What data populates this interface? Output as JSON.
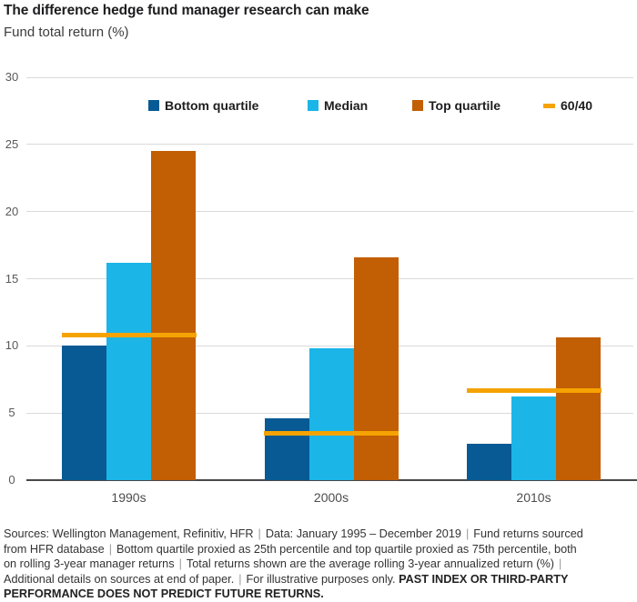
{
  "title": "The difference hedge fund manager research can make",
  "subtitle": "Fund total return (%)",
  "colors": {
    "bottom_quartile": "#075A93",
    "median": "#1BB5E8",
    "top_quartile": "#C25E04",
    "line_6040": "#F5A302",
    "gridline": "#DADADA",
    "axis_line": "#48484A",
    "tick_label": "#595959"
  },
  "chart_data": {
    "type": "bar",
    "title": "The difference hedge fund manager research can make",
    "subtitle": "Fund total return (%)",
    "categories": [
      "1990s",
      "2000s",
      "2010s"
    ],
    "series": [
      {
        "name": "Bottom quartile",
        "color_key": "bottom_quartile",
        "values": [
          10.0,
          4.6,
          2.7
        ]
      },
      {
        "name": "Median",
        "color_key": "median",
        "values": [
          16.2,
          9.8,
          6.2
        ]
      },
      {
        "name": "Top quartile",
        "color_key": "top_quartile",
        "values": [
          24.5,
          16.6,
          10.6
        ]
      }
    ],
    "overlay_line": {
      "name": "60/40",
      "color_key": "line_6040",
      "values": [
        10.8,
        3.5,
        6.7
      ]
    },
    "xlabel": "",
    "ylabel": "Fund total return (%)",
    "ylim": [
      0,
      30
    ],
    "yticks": [
      0,
      5,
      10,
      15,
      20,
      25,
      30
    ],
    "grid": true,
    "legend_position": "top"
  },
  "footer": {
    "sep_char": "|",
    "lines": [
      {
        "segments": [
          {
            "text": "Sources: Wellington Management, Refinitiv, HFR"
          },
          {
            "sep": true
          },
          {
            "text": "Data: January 1995 – December 2019"
          },
          {
            "sep": true
          },
          {
            "text": "Fund returns sourced"
          }
        ]
      },
      {
        "segments": [
          {
            "text": "from HFR database"
          },
          {
            "sep": true
          },
          {
            "text": "Bottom quartile proxied as 25th percentile and top quartile proxied as 75th percentile, both"
          }
        ]
      },
      {
        "segments": [
          {
            "text": "on rolling 3-year manager returns"
          },
          {
            "sep": true
          },
          {
            "text": "Total returns shown are the average rolling 3-year annualized return (%)"
          },
          {
            "sep": true
          }
        ]
      },
      {
        "segments": [
          {
            "text": "Additional details on sources at end of paper."
          },
          {
            "sep": true
          },
          {
            "text": "For illustrative purposes only. "
          },
          {
            "text": "PAST INDEX OR THIRD-PARTY",
            "bold": true
          }
        ]
      },
      {
        "segments": [
          {
            "text": "PERFORMANCE DOES NOT PREDICT FUTURE RETURNS.",
            "bold": true
          }
        ]
      }
    ]
  }
}
